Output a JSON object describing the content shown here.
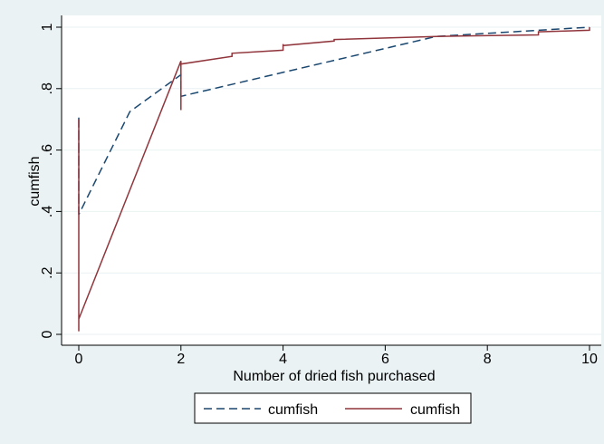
{
  "chart_data": {
    "type": "line",
    "title": "",
    "xlabel": "Number of dried fish purchased",
    "ylabel": "cumfish",
    "xlim": [
      0,
      10
    ],
    "ylim": [
      0,
      1
    ],
    "x_ticks": [
      0,
      2,
      4,
      6,
      8,
      10
    ],
    "y_ticks": [
      0,
      0.2,
      0.4,
      0.6,
      0.8,
      1
    ],
    "x_tick_labels": [
      "0",
      "2",
      "4",
      "6",
      "8",
      "10"
    ],
    "y_tick_labels": [
      "0",
      ".2",
      ".4",
      ".6",
      ".8",
      "1"
    ],
    "grid": "horizontal",
    "legend_position": "bottom",
    "series": [
      {
        "name": "cumfish",
        "style": "dashed",
        "color": "#1a476f",
        "points": [
          [
            0,
            0.39
          ],
          [
            0,
            0.71
          ],
          [
            0,
            0.39
          ],
          [
            1,
            0.725
          ],
          [
            2,
            0.845
          ],
          [
            2,
            0.775
          ],
          [
            7,
            0.97
          ],
          [
            10,
            1.0
          ]
        ]
      },
      {
        "name": "cumfish",
        "style": "solid",
        "color": "#90353b",
        "points": [
          [
            0,
            0.01
          ],
          [
            0,
            0.7
          ],
          [
            0,
            0.01
          ],
          [
            0,
            0.05
          ],
          [
            2,
            0.89
          ],
          [
            2,
            0.73
          ],
          [
            2,
            0.88
          ],
          [
            3,
            0.905
          ],
          [
            3,
            0.915
          ],
          [
            4,
            0.925
          ],
          [
            4,
            0.945
          ],
          [
            4,
            0.94
          ],
          [
            5,
            0.955
          ],
          [
            5,
            0.96
          ],
          [
            7,
            0.97
          ],
          [
            9,
            0.975
          ],
          [
            9,
            0.985
          ],
          [
            10,
            0.99
          ],
          [
            10,
            1.0
          ]
        ]
      }
    ]
  },
  "colors": {
    "background": "#eaf2f3",
    "plot_background": "#ffffff",
    "grid": "#eaf2f3"
  }
}
